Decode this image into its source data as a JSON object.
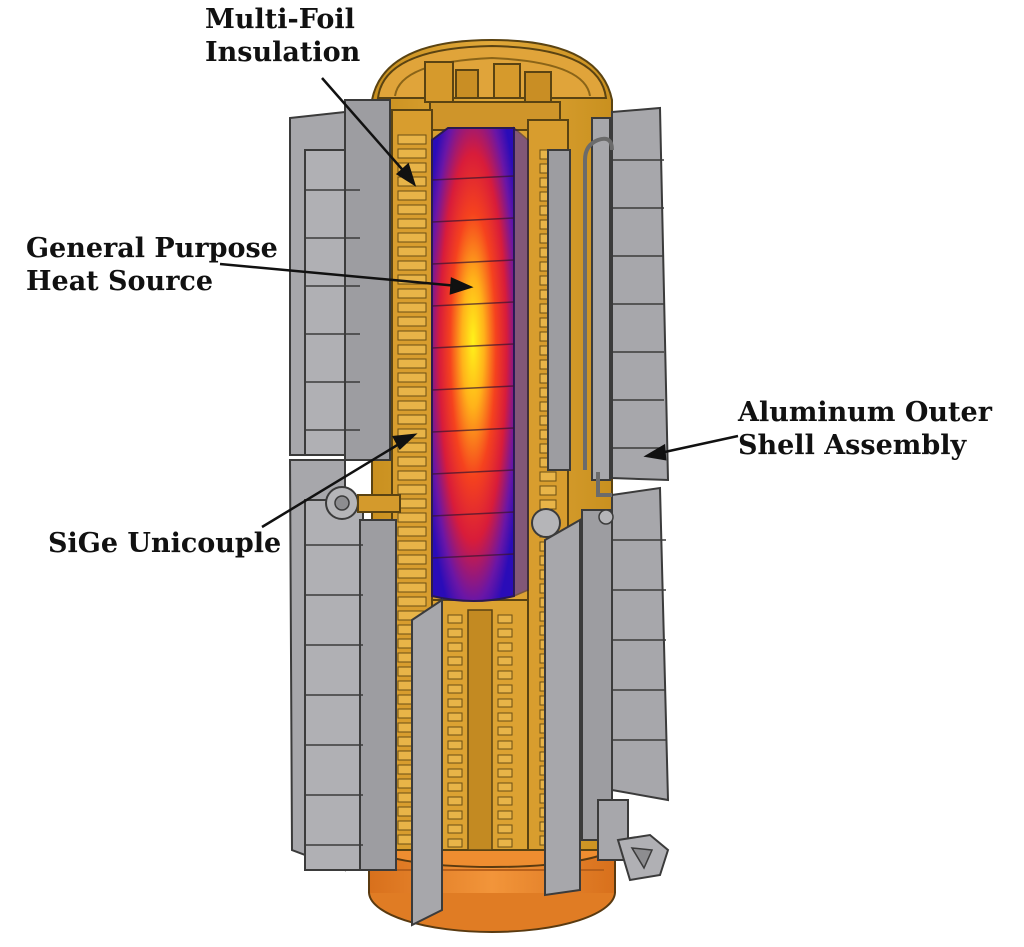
{
  "labels": {
    "multi_foil": [
      "Multi-Foil",
      "Insulation"
    ],
    "heat_source": [
      "General Purpose",
      "Heat Source"
    ],
    "outer_shell": [
      "Aluminum Outer",
      "Shell Assembly"
    ],
    "unicouple": [
      "SiGe Unicouple"
    ]
  },
  "colors": {
    "housing": "#d9a02c",
    "housing_dark": "#b3801c",
    "outline": "#5a4312",
    "fin": "#a7a7ab",
    "fin_edge": "#3b3b3b",
    "base": "#e8832a",
    "heat_hot": "#ffee1a",
    "heat_mid": "#f23a1e",
    "heat_cool": "#3a10b0"
  }
}
